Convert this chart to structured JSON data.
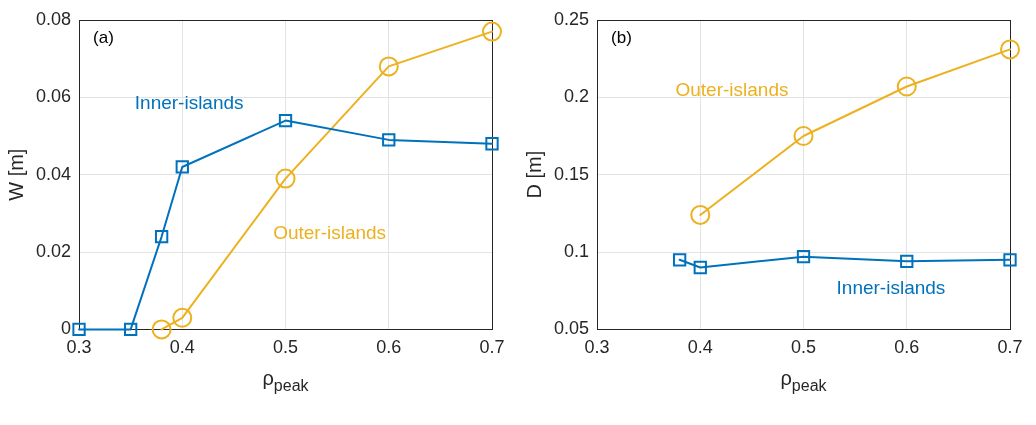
{
  "chart_data": [
    {
      "type": "line",
      "xlabel": "ρ$_{peak}$",
      "ylabel": "W [m]",
      "annotations": [
        "(a)"
      ],
      "xlim": [
        0.3,
        0.7
      ],
      "xticks": [
        0.3,
        0.4,
        0.5,
        0.6,
        0.7
      ],
      "ylim": [
        0,
        0.08
      ],
      "yticks": [
        0,
        0.02,
        0.04,
        0.06,
        0.08
      ],
      "grid": true,
      "legend": false,
      "line_style": "solid",
      "series": [
        {
          "name": "Inner-islands",
          "color": "#0072bd",
          "marker": "square",
          "x": [
            0.3,
            0.35,
            0.38,
            0.4,
            0.5,
            0.6,
            0.7
          ],
          "values": [
            0,
            0,
            0.024,
            0.042,
            0.054,
            0.049,
            0.048
          ]
        },
        {
          "name": "Outer-islands",
          "color": "#edb120",
          "marker": "circle",
          "x": [
            0.38,
            0.4,
            0.5,
            0.6,
            0.7
          ],
          "values": [
            0,
            0.003,
            0.039,
            0.068,
            0.077
          ]
        }
      ]
    },
    {
      "type": "line",
      "xlabel": "ρ$_{peak}$",
      "ylabel": "D [m]",
      "annotations": [
        "(b)"
      ],
      "xlim": [
        0.3,
        0.7
      ],
      "xticks": [
        0.3,
        0.4,
        0.5,
        0.6,
        0.7
      ],
      "ylim": [
        0.05,
        0.25
      ],
      "yticks": [
        0.05,
        0.1,
        0.15,
        0.2,
        0.25
      ],
      "grid": true,
      "legend": false,
      "line_style": "solid",
      "series": [
        {
          "name": "Inner-islands",
          "color": "#0072bd",
          "marker": "square",
          "x": [
            0.38,
            0.4,
            0.5,
            0.6,
            0.7
          ],
          "values": [
            0.095,
            0.09,
            0.097,
            0.094,
            0.095
          ]
        },
        {
          "name": "Outer-islands",
          "color": "#edb120",
          "marker": "circle",
          "x": [
            0.4,
            0.5,
            0.6,
            0.7
          ],
          "values": [
            0.124,
            0.175,
            0.207,
            0.231
          ]
        }
      ]
    }
  ]
}
